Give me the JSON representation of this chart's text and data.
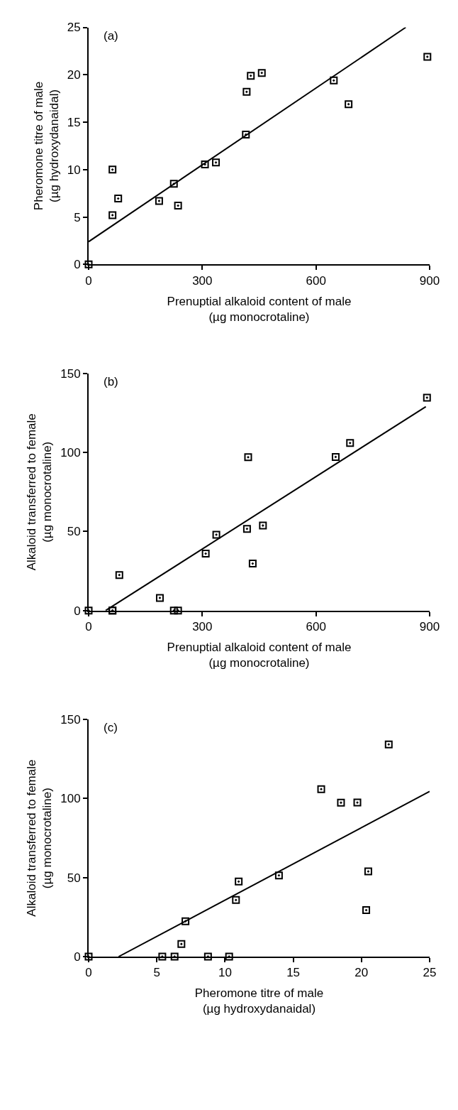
{
  "chart_data": [
    {
      "type": "scatter",
      "annotations": [
        "(a)"
      ],
      "xlabel": "Prenuptial alkaloid content of male\n(µg monocrotaline)",
      "ylabel": "Pheromone titre of male\n(µg hydroxydanaidal)",
      "xlim": [
        0,
        900
      ],
      "ylim": [
        0,
        25
      ],
      "xticks": [
        0,
        300,
        600,
        900
      ],
      "yticks": [
        0,
        5,
        10,
        15,
        20,
        25
      ],
      "series": [
        {
          "type": "scatter",
          "marker": "square",
          "color": "#000000",
          "x": [
            0,
            63,
            63,
            78,
            186,
            225,
            236,
            307,
            336,
            415,
            417,
            428,
            457,
            647,
            686,
            894
          ],
          "values": [
            0,
            5.2,
            10.0,
            6.95,
            6.7,
            8.5,
            6.2,
            10.55,
            10.75,
            13.7,
            18.2,
            19.9,
            20.2,
            19.4,
            16.9,
            21.9
          ]
        },
        {
          "type": "line",
          "marker": "none",
          "color": "#000000",
          "x": [
            0,
            837
          ],
          "values": [
            2.4,
            25
          ]
        }
      ]
    },
    {
      "type": "scatter",
      "annotations": [
        "(b)"
      ],
      "xlabel": "Prenuptial alkaloid content of male\n(µg monocrotaline)",
      "ylabel": "Alkaloid transferred to female\n(µg monocrotaline)",
      "xlim": [
        0,
        900
      ],
      "ylim": [
        0,
        150
      ],
      "xticks": [
        0,
        300,
        600,
        900
      ],
      "yticks": [
        0,
        50,
        100,
        150
      ],
      "series": [
        {
          "type": "scatter",
          "marker": "square",
          "color": "#000000",
          "x": [
            0,
            63,
            63,
            81,
            188,
            225,
            236,
            309,
            337,
            418,
            421,
            433,
            460,
            652,
            690,
            893
          ],
          "values": [
            0,
            0,
            0,
            22.5,
            8,
            0,
            0,
            36,
            48,
            51.7,
            97,
            29.7,
            53.8,
            97.2,
            106,
            134.7
          ]
        },
        {
          "type": "line",
          "marker": "none",
          "color": "#000000",
          "x": [
            45,
            890
          ],
          "values": [
            0,
            129
          ]
        }
      ]
    },
    {
      "type": "scatter",
      "annotations": [
        "(c)"
      ],
      "xlabel": "Pheromone titre of male\n(µg hydroxydanaidal)",
      "ylabel": "Alkaloid transferred to female\n(µg monocrotaline)",
      "xlim": [
        0,
        25
      ],
      "ylim": [
        0,
        150
      ],
      "xticks": [
        0,
        5,
        10,
        15,
        20,
        25
      ],
      "yticks": [
        0,
        50,
        100,
        150
      ],
      "series": [
        {
          "type": "scatter",
          "marker": "square",
          "color": "#000000",
          "x": [
            0,
            5.4,
            6.3,
            6.8,
            7.1,
            8.75,
            10.3,
            10.8,
            11.0,
            13.95,
            17.05,
            18.5,
            19.7,
            20.35,
            20.5,
            22.0
          ],
          "values": [
            0,
            0,
            0,
            8,
            22.4,
            0,
            0,
            35.8,
            47.5,
            51.4,
            106,
            97.4,
            97.5,
            29.4,
            53.9,
            134.3
          ]
        },
        {
          "type": "line",
          "marker": "none",
          "color": "#000000",
          "x": [
            2.2,
            25
          ],
          "values": [
            0,
            104.5
          ]
        }
      ]
    }
  ]
}
